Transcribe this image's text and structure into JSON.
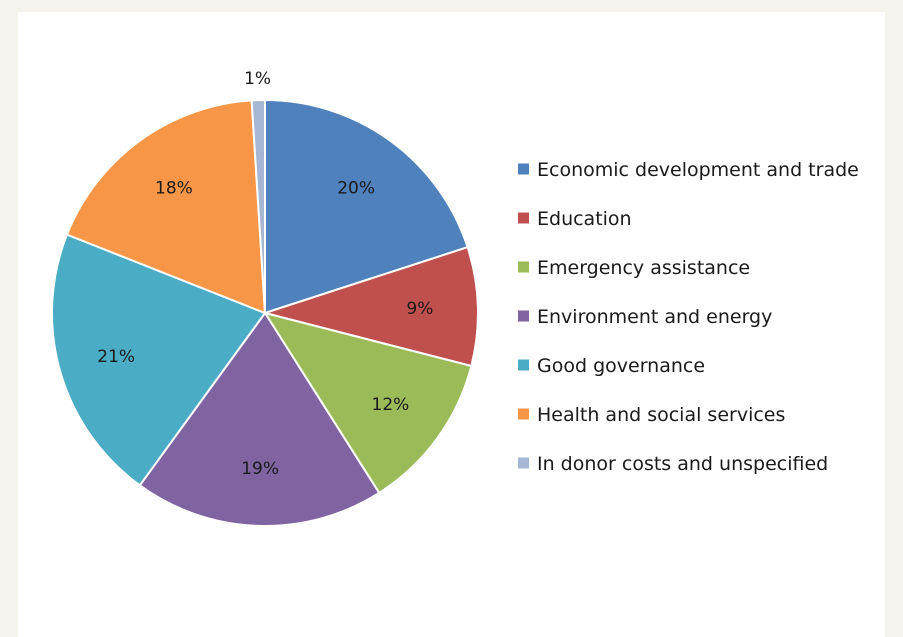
{
  "chart_data": {
    "type": "pie",
    "categories": [
      "Economic development and trade",
      "Education",
      "Emergency assistance",
      "Environment and energy",
      "Good governance",
      "Health and social services",
      "In donor costs and unspecified"
    ],
    "values": [
      20,
      9,
      12,
      19,
      21,
      18,
      1
    ],
    "labels": [
      "20%",
      "9%",
      "12%",
      "19%",
      "21%",
      "18%",
      "1%"
    ],
    "colors": [
      "#4f81bd",
      "#c0504d",
      "#9bbb59",
      "#8064a2",
      "#4bacc6",
      "#f79646",
      "#a5b7d4"
    ],
    "legend_position": "right",
    "title": ""
  }
}
